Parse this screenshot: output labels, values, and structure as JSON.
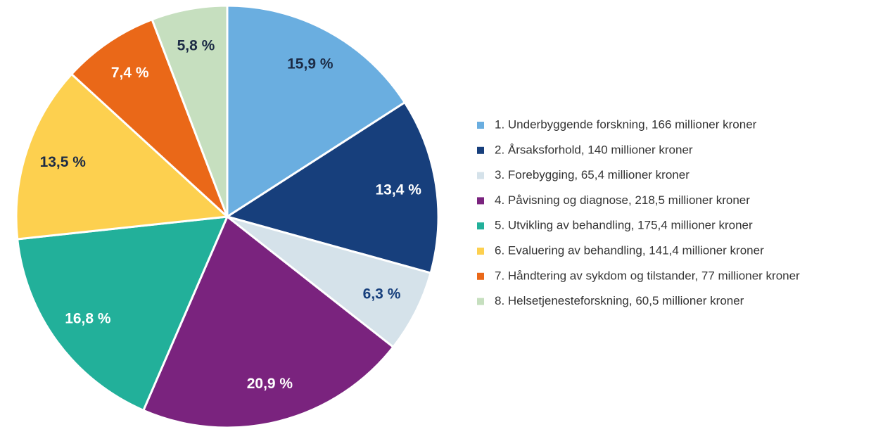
{
  "chart_data": {
    "type": "pie",
    "categories": [
      "1. Underbyggende forskning, 166 millioner kroner",
      "2. Årsaksforhold, 140 millioner kroner",
      "3. Forebygging, 65,4 millioner kroner",
      "4. Påvisning og diagnose, 218,5 millioner kroner",
      "5. Utvikling av behandling, 175,4 millioner kroner",
      "6. Evaluering av behandling, 141,4 millioner kroner",
      "7. Håndtering av sykdom og tilstander, 77 millioner kroner",
      "8. Helsetjenesteforskning, 60,5 millioner kroner"
    ],
    "values": [
      15.9,
      13.4,
      6.3,
      20.9,
      16.8,
      13.5,
      7.4,
      5.8
    ],
    "value_labels": [
      "15,9 %",
      "13,4 %",
      "6,3 %",
      "20,9 %",
      "16,8 %",
      "13,5 %",
      "7,4 %",
      "5,8 %"
    ],
    "colors": [
      "#6aaee0",
      "#173f7c",
      "#d5e2ea",
      "#7a237e",
      "#22b09a",
      "#fdd04f",
      "#ea6818",
      "#c6dfbf"
    ],
    "label_colors": [
      "#1c2b45",
      "#ffffff",
      "#173f7c",
      "#ffffff",
      "#ffffff",
      "#1c2b45",
      "#ffffff",
      "#1c2b45"
    ]
  }
}
